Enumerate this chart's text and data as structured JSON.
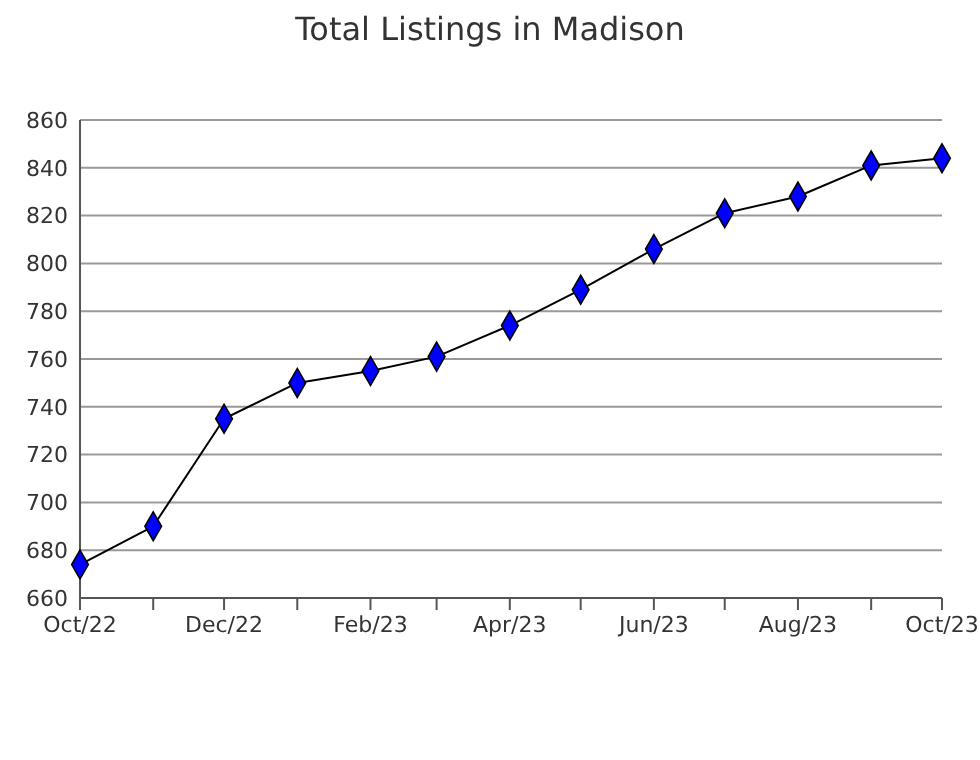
{
  "chart_data": {
    "type": "line",
    "title": "Total Listings in Madison",
    "x": [
      "2022-10",
      "2022-11",
      "2022-12",
      "2023-01",
      "2023-02",
      "2023-03",
      "2023-04",
      "2023-05",
      "2023-06",
      "2023-07",
      "2023-08",
      "2023-09",
      "2023-10"
    ],
    "series": [
      {
        "color": "#0000ff",
        "values": [
          674,
          690,
          735,
          750,
          755,
          761,
          774,
          789,
          806,
          821,
          828,
          841,
          844
        ]
      }
    ],
    "xlim": [
      "2022-10",
      "2023-10"
    ],
    "xticks": [
      {
        "value": "2022-10",
        "label": "Oct/22"
      },
      {
        "value": "2022-11",
        "label": null
      },
      {
        "value": "2022-12",
        "label": "Dec/22"
      },
      {
        "value": "2023-01",
        "label": null
      },
      {
        "value": "2023-02",
        "label": "Feb/23"
      },
      {
        "value": "2023-03",
        "label": null
      },
      {
        "value": "2023-04",
        "label": "Apr/23"
      },
      {
        "value": "2023-05",
        "label": null
      },
      {
        "value": "2023-06",
        "label": "Jun/23"
      },
      {
        "value": "2023-07",
        "label": null
      },
      {
        "value": "2023-08",
        "label": "Aug/23"
      },
      {
        "value": "2023-09",
        "label": null
      },
      {
        "value": "2023-10",
        "label": "Oct/23"
      }
    ],
    "ylim": [
      660,
      860
    ],
    "yticks": [
      660,
      680,
      700,
      720,
      740,
      760,
      780,
      800,
      820,
      840,
      860
    ],
    "grid": "y",
    "marker": "diamond",
    "line_style": "solid"
  }
}
